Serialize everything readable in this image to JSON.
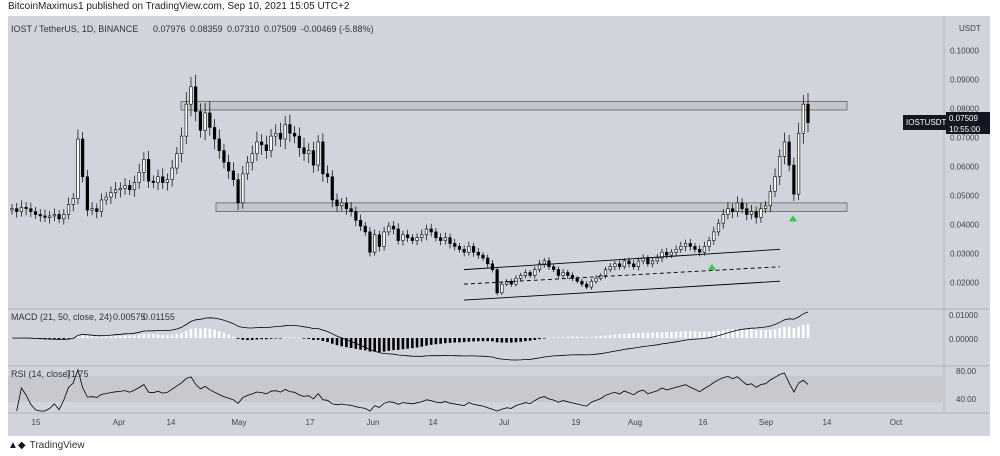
{
  "header": {
    "publisher_line": "BitcoinMaximus1 published on TradingView.com, Sep 10, 2021 15:05 UTC+2"
  },
  "footer": {
    "brand": "TradingView"
  },
  "colors": {
    "background": "#d1d4dc",
    "candle": "#000000",
    "zone_fill": "#c4c6cc",
    "zone_stroke": "#555555",
    "green_arrow": "#2ecc40",
    "macd_hist_pos": "#ffffff",
    "macd_hist_neg": "#000000",
    "rsi_band": "#c7c9cf"
  },
  "chart_data": {
    "type": "candlestick",
    "symbol_line": {
      "symbol": "IOST / TetherUS, 1D, BINANCE",
      "open": "0.07976",
      "high": "0.08359",
      "low": "0.07310",
      "close": "0.07509",
      "change": "-0.00469 (-5.88%)"
    },
    "price_axis": {
      "currency": "USDT",
      "ticks": [
        "0.10000",
        "0.09000",
        "0.08000",
        "0.07000",
        "0.06000",
        "0.05000",
        "0.04000",
        "0.03000",
        "0.02000"
      ],
      "ylim": [
        0.013,
        0.105
      ]
    },
    "last_price_label": {
      "symbol": "IOSTUSDT",
      "price": "0.07509",
      "countdown": "10:55:00"
    },
    "time_axis": [
      "15",
      "Apr",
      "14",
      "May",
      "17",
      "Jun",
      "14",
      "Jul",
      "19",
      "Aug",
      "16",
      "Sep",
      "14",
      "Oct"
    ],
    "horizontal_zones": [
      {
        "name": "resistance",
        "low": 0.0795,
        "high": 0.0825
      },
      {
        "name": "support",
        "low": 0.0445,
        "high": 0.0475
      }
    ],
    "channel": {
      "upper": [
        0.0245,
        0.0315
      ],
      "middle": [
        0.0195,
        0.0255
      ],
      "lower": [
        0.014,
        0.0205
      ]
    },
    "closes": [
      0.0455,
      0.0445,
      0.046,
      0.0455,
      0.0445,
      0.0435,
      0.043,
      0.0425,
      0.043,
      0.0435,
      0.042,
      0.0435,
      0.047,
      0.049,
      0.0695,
      0.0565,
      0.045,
      0.0455,
      0.0445,
      0.0485,
      0.0495,
      0.051,
      0.052,
      0.0525,
      0.0535,
      0.052,
      0.0545,
      0.058,
      0.0625,
      0.055,
      0.0545,
      0.0565,
      0.0545,
      0.0555,
      0.0595,
      0.0645,
      0.0705,
      0.0815,
      0.0875,
      0.079,
      0.0725,
      0.0785,
      0.0735,
      0.0695,
      0.0655,
      0.0615,
      0.0585,
      0.0555,
      0.0475,
      0.0575,
      0.0615,
      0.0645,
      0.0685,
      0.0675,
      0.0655,
      0.0705,
      0.0715,
      0.0695,
      0.0745,
      0.0715,
      0.0705,
      0.0665,
      0.0645,
      0.0655,
      0.0605,
      0.0685,
      0.0575,
      0.0565,
      0.0485,
      0.0465,
      0.0475,
      0.0455,
      0.0445,
      0.0415,
      0.0395,
      0.0375,
      0.0305,
      0.0365,
      0.0325,
      0.0375,
      0.0395,
      0.0385,
      0.0345,
      0.0365,
      0.0355,
      0.0345,
      0.0355,
      0.0365,
      0.0385,
      0.0375,
      0.0355,
      0.0345,
      0.0355,
      0.0335,
      0.0325,
      0.0315,
      0.0305,
      0.0325,
      0.0305,
      0.0295,
      0.0285,
      0.0265,
      0.0245,
      0.0165,
      0.0195,
      0.0205,
      0.0195,
      0.0215,
      0.0225,
      0.0235,
      0.0225,
      0.0245,
      0.0265,
      0.0275,
      0.0255,
      0.0245,
      0.0225,
      0.0235,
      0.0225,
      0.0215,
      0.0205,
      0.0195,
      0.0185,
      0.0205,
      0.0215,
      0.0225,
      0.0245,
      0.0255,
      0.0265,
      0.0255,
      0.0275,
      0.0265,
      0.0255,
      0.0275,
      0.0285,
      0.0265,
      0.0275,
      0.0285,
      0.0305,
      0.0295,
      0.0305,
      0.0315,
      0.0325,
      0.0335,
      0.0325,
      0.0315,
      0.0305,
      0.0325,
      0.0345,
      0.0375,
      0.0405,
      0.0435,
      0.0455,
      0.0445,
      0.0475,
      0.0455,
      0.0435,
      0.0445,
      0.0425,
      0.0455,
      0.0465,
      0.0515,
      0.0565,
      0.0635,
      0.0685,
      0.0605,
      0.0505,
      0.0715,
      0.0815,
      0.0751
    ],
    "indicators": {
      "macd": {
        "label": "MACD (21, 50, close, 24)",
        "value1": "0.00575",
        "value2": "0.01155",
        "ticks": [
          "0.01000",
          "0.00000"
        ]
      },
      "rsi": {
        "label": "RSI (14, close)",
        "value": "71.75",
        "ticks": [
          "80.00",
          "40.00"
        ]
      }
    }
  }
}
